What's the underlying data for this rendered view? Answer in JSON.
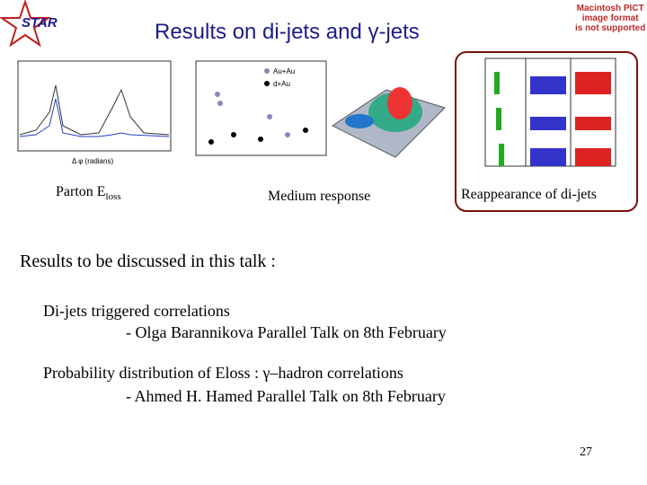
{
  "logo": "STAR",
  "header": {
    "title": "Results on di-jets and γ-jets"
  },
  "pict_notice": [
    "Macintosh PICT",
    "image format",
    "is not supported"
  ],
  "figures": {
    "left_plot": {
      "x_label": "Δ φ (radians)"
    },
    "middle_plot": {
      "legend": [
        "Au+Au",
        "d+Au"
      ]
    }
  },
  "captions": {
    "parton": {
      "main": "Parton E",
      "sub": "loss"
    },
    "medium": "Medium response",
    "reappearance": "Reappearance of di-jets"
  },
  "body": {
    "intro": "Results to be discussed in this talk :",
    "items": [
      {
        "topic": "Di-jets triggered correlations",
        "talk": "- Olga Barannikova Parallel Talk on 8th February"
      },
      {
        "topic": "Probability distribution of Eloss : γ–hadron correlations",
        "talk": "- Ahmed H. Hamed Parallel Talk on 8th February"
      }
    ]
  },
  "page_number": "27"
}
